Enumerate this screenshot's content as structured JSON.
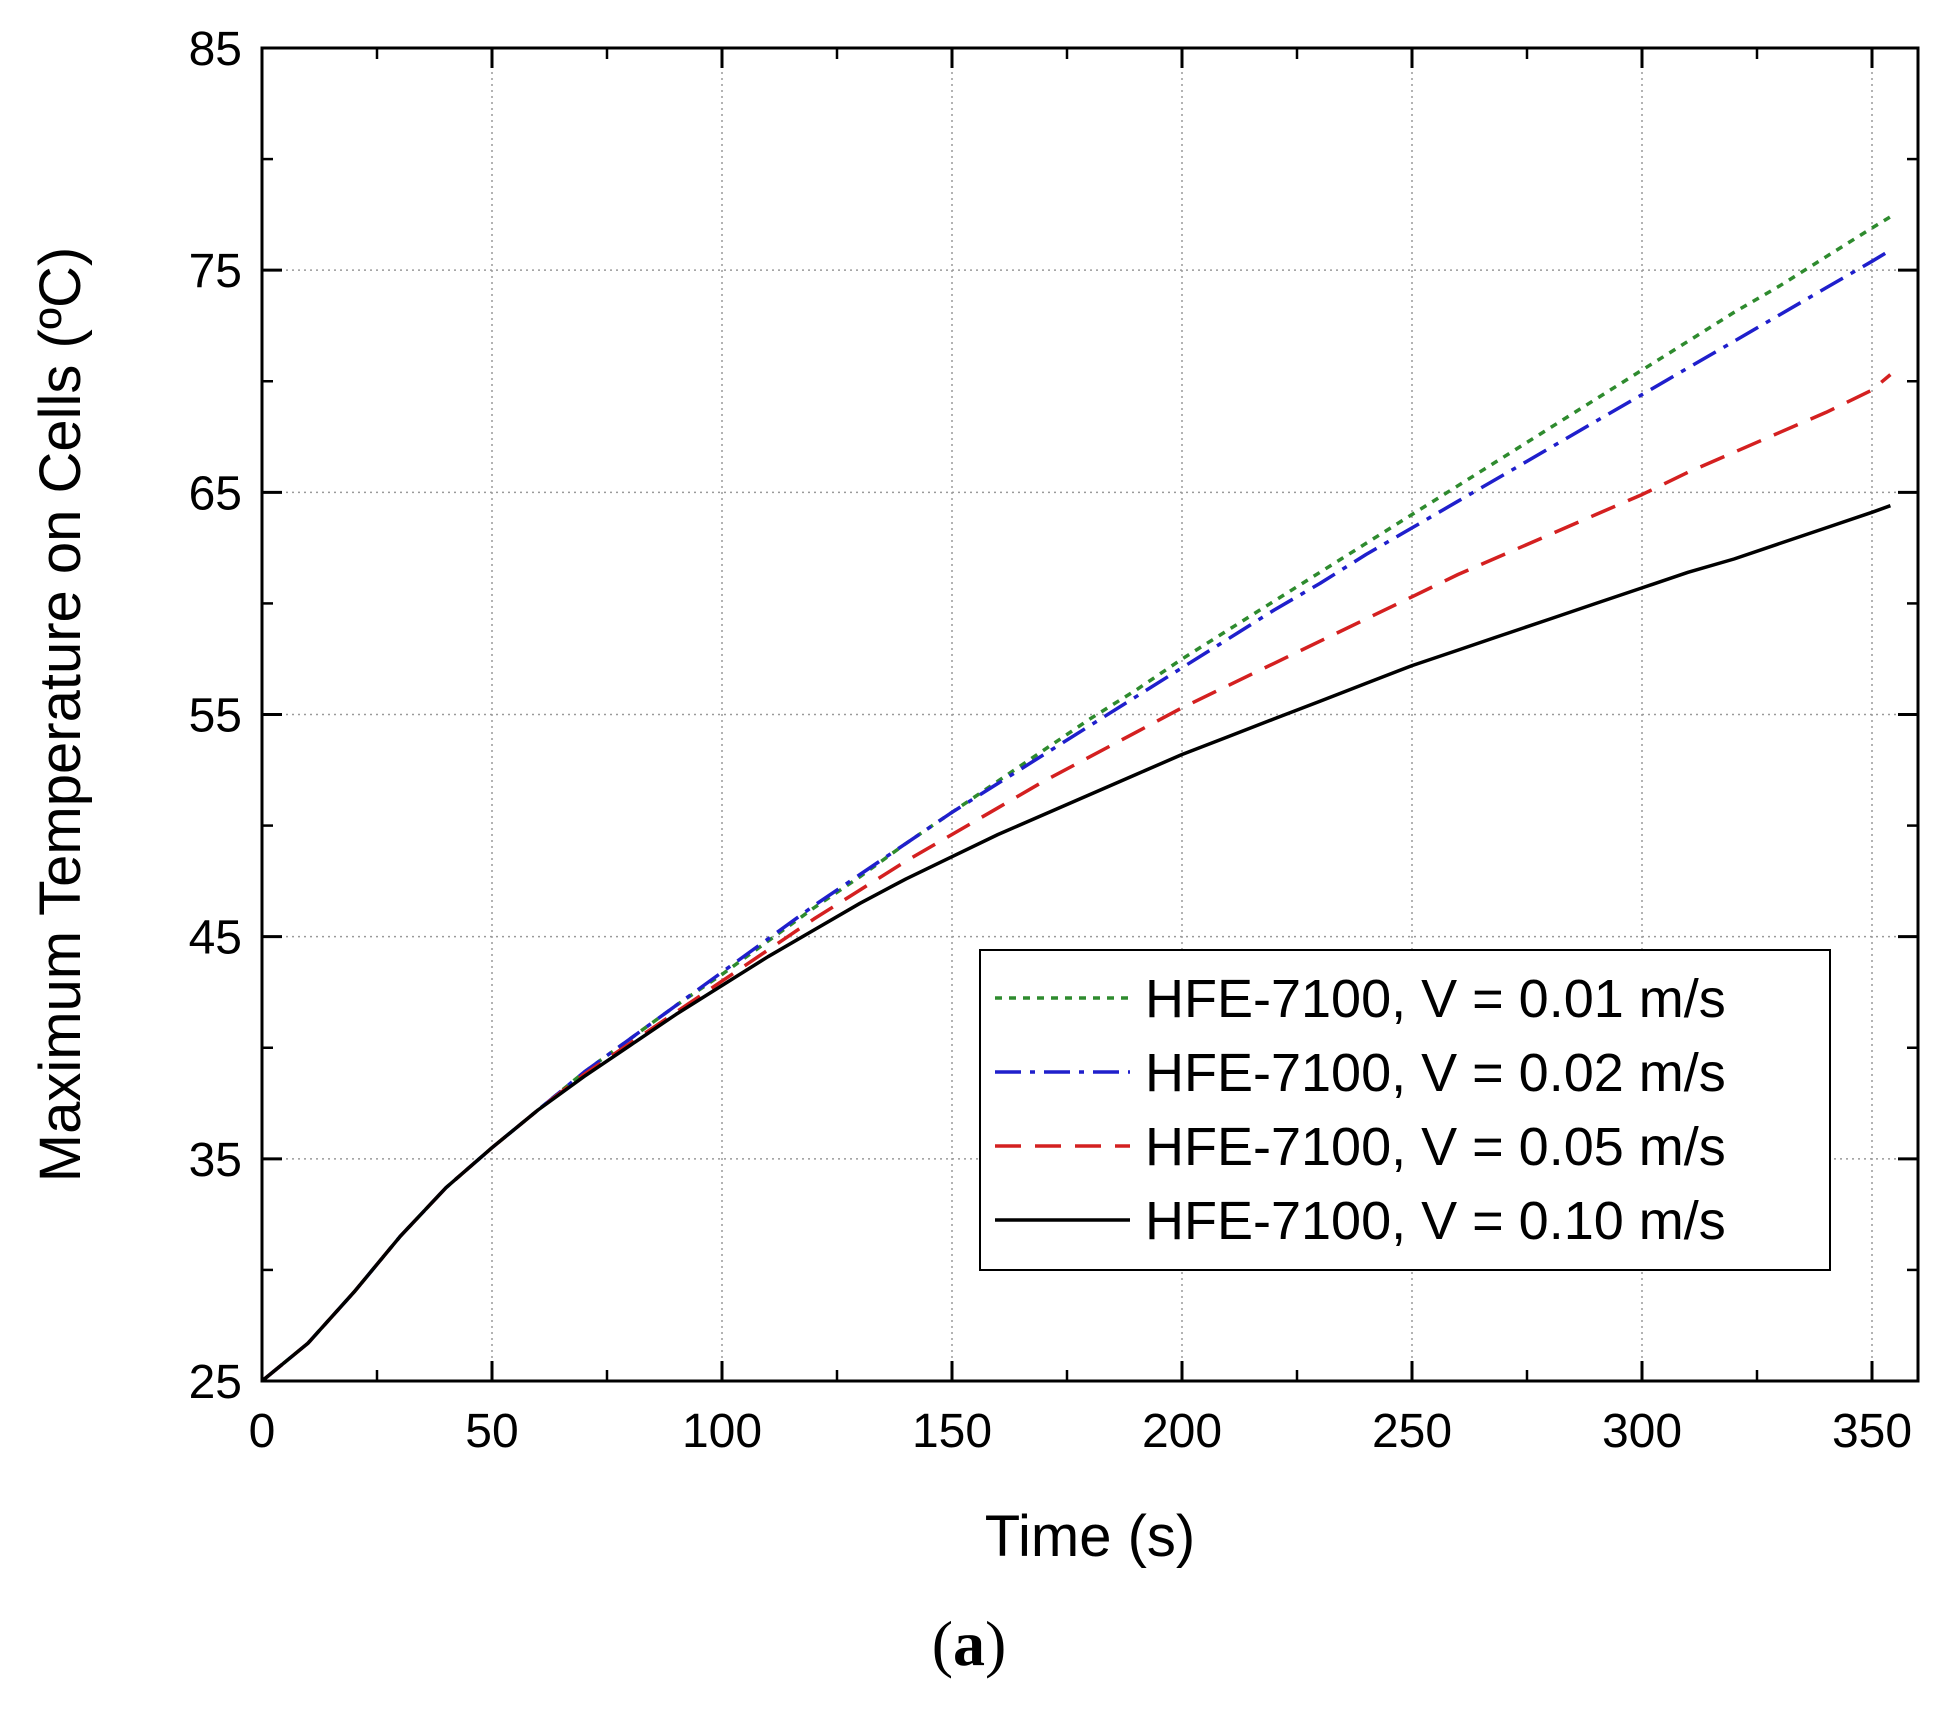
{
  "chart_data": {
    "type": "line",
    "title": "",
    "xlabel": "Time (s)",
    "ylabel": "Maximum Temperature on Cells (ºC)",
    "xlim": [
      0,
      360
    ],
    "ylim": [
      25,
      85
    ],
    "xticks": [
      0,
      50,
      100,
      150,
      200,
      250,
      300,
      350
    ],
    "yticks": [
      25,
      35,
      45,
      55,
      65,
      75,
      85
    ],
    "grid": true,
    "legend_position": "bottom-right",
    "series": [
      {
        "name": "HFE-7100, V = 0.01 m/s",
        "color": "#2e8b2e",
        "style": "dotted",
        "x": [
          0,
          10,
          20,
          30,
          40,
          50,
          60,
          70,
          80,
          90,
          100,
          110,
          120,
          130,
          140,
          150,
          160,
          170,
          180,
          190,
          200,
          210,
          220,
          230,
          240,
          250,
          260,
          270,
          280,
          290,
          300,
          310,
          320,
          330,
          340,
          350,
          354
        ],
        "y": [
          25.0,
          26.7,
          29.0,
          31.5,
          33.7,
          35.5,
          37.2,
          38.9,
          40.4,
          41.9,
          43.3,
          44.8,
          46.3,
          47.7,
          49.2,
          50.6,
          52.0,
          53.4,
          54.8,
          56.1,
          57.5,
          58.8,
          60.1,
          61.4,
          62.7,
          64.0,
          65.3,
          66.6,
          67.9,
          69.2,
          70.5,
          71.8,
          73.1,
          74.3,
          75.6,
          76.9,
          77.4
        ]
      },
      {
        "name": "HFE-7100, V = 0.02 m/s",
        "color": "#1f1fcc",
        "style": "dashdot",
        "x": [
          0,
          10,
          20,
          30,
          40,
          50,
          60,
          70,
          80,
          90,
          100,
          110,
          120,
          130,
          140,
          150,
          160,
          170,
          180,
          190,
          200,
          210,
          220,
          230,
          240,
          250,
          260,
          270,
          280,
          290,
          300,
          310,
          320,
          330,
          340,
          350,
          354
        ],
        "y": [
          25.0,
          26.7,
          29.0,
          31.5,
          33.7,
          35.5,
          37.2,
          38.9,
          40.4,
          41.9,
          43.4,
          44.9,
          46.4,
          47.8,
          49.2,
          50.6,
          51.9,
          53.2,
          54.5,
          55.8,
          57.1,
          58.4,
          59.7,
          60.9,
          62.2,
          63.4,
          64.6,
          65.8,
          67.0,
          68.2,
          69.4,
          70.6,
          71.8,
          73.0,
          74.2,
          75.4,
          75.9
        ]
      },
      {
        "name": "HFE-7100, V = 0.05 m/s",
        "color": "#d42020",
        "style": "dashed",
        "x": [
          0,
          10,
          20,
          30,
          40,
          50,
          60,
          70,
          80,
          90,
          100,
          110,
          120,
          130,
          140,
          150,
          160,
          170,
          180,
          190,
          200,
          210,
          220,
          230,
          240,
          250,
          260,
          270,
          280,
          290,
          300,
          310,
          320,
          330,
          340,
          350,
          354
        ],
        "y": [
          25.0,
          26.7,
          29.0,
          31.5,
          33.7,
          35.5,
          37.2,
          38.8,
          40.2,
          41.6,
          43.0,
          44.4,
          45.8,
          47.1,
          48.4,
          49.6,
          50.8,
          52.0,
          53.1,
          54.2,
          55.3,
          56.3,
          57.3,
          58.3,
          59.3,
          60.3,
          61.3,
          62.2,
          63.1,
          64.0,
          64.9,
          65.9,
          66.8,
          67.7,
          68.6,
          69.6,
          70.3
        ]
      },
      {
        "name": "HFE-7100, V = 0.10 m/s",
        "color": "#000000",
        "style": "solid",
        "x": [
          0,
          10,
          20,
          30,
          40,
          50,
          60,
          70,
          80,
          90,
          100,
          110,
          120,
          130,
          140,
          150,
          160,
          170,
          180,
          190,
          200,
          210,
          220,
          230,
          240,
          250,
          260,
          270,
          280,
          290,
          300,
          310,
          320,
          330,
          340,
          350,
          354
        ],
        "y": [
          25.0,
          26.7,
          29.0,
          31.5,
          33.7,
          35.5,
          37.2,
          38.7,
          40.1,
          41.5,
          42.8,
          44.1,
          45.3,
          46.5,
          47.6,
          48.6,
          49.6,
          50.5,
          51.4,
          52.3,
          53.2,
          54.0,
          54.8,
          55.6,
          56.4,
          57.2,
          57.9,
          58.6,
          59.3,
          60.0,
          60.7,
          61.4,
          62.0,
          62.7,
          63.4,
          64.1,
          64.4
        ]
      }
    ]
  },
  "caption": {
    "open": "(",
    "letter": "a",
    "close": ")"
  }
}
